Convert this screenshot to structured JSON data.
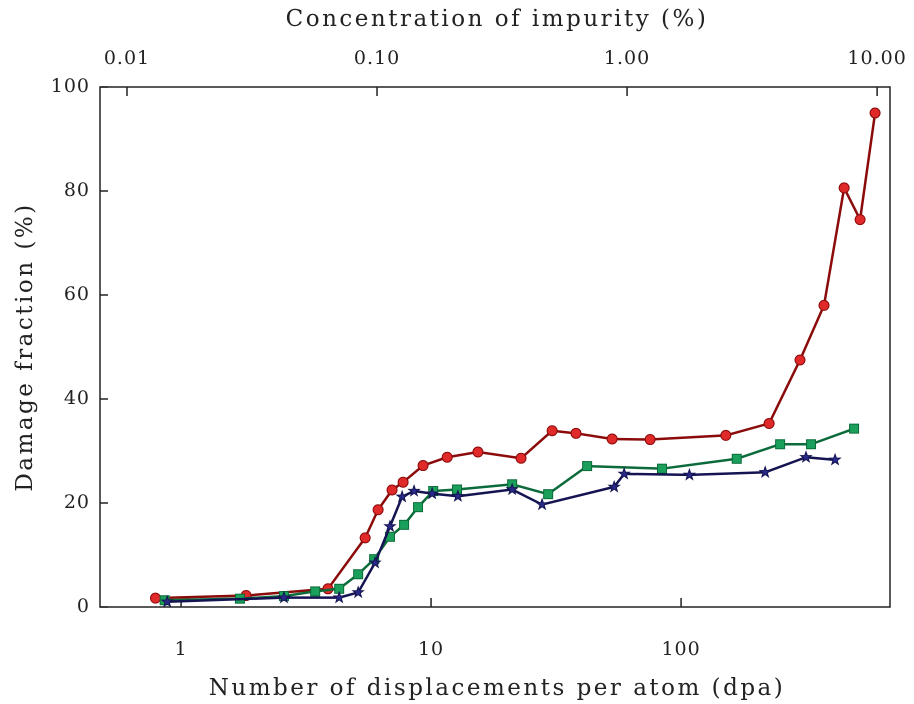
{
  "chart_data": {
    "type": "line",
    "xlabel": "Number of displacements per atom (dpa)",
    "ylabel": "Damage fraction (%)",
    "x2label": "Concentration of impurity (%)",
    "xscale": "log",
    "xlim": [
      0.474,
      685
    ],
    "xticks": [
      1,
      10,
      100
    ],
    "x2lim": [
      0.0078,
      11.26
    ],
    "x2ticks": [
      {
        "value": 0.01,
        "label": "0.01"
      },
      {
        "value": 0.1,
        "label": "0.10"
      },
      {
        "value": 1,
        "label": "1.00"
      },
      {
        "value": 10,
        "label": "10.00"
      }
    ],
    "ylim": [
      0,
      100
    ],
    "yticks": [
      0,
      20,
      40,
      60,
      80,
      100
    ],
    "series": [
      {
        "color": "#8b0a0a",
        "marker": "circle",
        "marker_color": "#e02a2a",
        "x": [
          0.79,
          1.82,
          3.87,
          5.45,
          6.14,
          6.98,
          7.73,
          9.29,
          11.6,
          15.4,
          22.9,
          30.5,
          38.0,
          53.0,
          75.2,
          151,
          225,
          299,
          373,
          449,
          520,
          597
        ],
        "values": [
          1.7,
          2.2,
          3.5,
          13.3,
          18.7,
          22.5,
          24,
          27.2,
          28.8,
          29.8,
          28.6,
          33.9,
          33.4,
          32.3,
          32.2,
          33,
          35.3,
          47.5,
          58,
          80.6,
          74.5,
          95
        ]
      },
      {
        "color": "#0b6b3a",
        "marker": "square",
        "marker_color": "#1aa05a",
        "x": [
          0.86,
          1.72,
          2.58,
          3.44,
          4.29,
          5.11,
          5.92,
          6.85,
          7.8,
          8.87,
          10.2,
          12.7,
          21.1,
          29.4,
          42.1,
          83.9,
          167,
          249,
          331,
          492
        ],
        "values": [
          1.3,
          1.6,
          2.1,
          3.0,
          3.5,
          6.3,
          9.2,
          13.5,
          15.8,
          19.2,
          22.3,
          22.6,
          23.6,
          21.7,
          27.1,
          26.6,
          28.5,
          31.3,
          31.3,
          34.3
        ]
      },
      {
        "color": "#141452",
        "marker": "star",
        "marker_color": "#2a2a8a",
        "x": [
          0.88,
          2.58,
          4.29,
          5.11,
          5.97,
          6.85,
          7.66,
          8.55,
          10.1,
          12.8,
          21.1,
          27.8,
          54.0,
          59.2,
          108,
          217,
          316,
          413
        ],
        "values": [
          1.0,
          1.8,
          1.8,
          2.8,
          8.5,
          15.5,
          21.2,
          22.3,
          21.8,
          21.3,
          22.6,
          19.7,
          23.1,
          25.6,
          25.4,
          25.9,
          28.8,
          28.3
        ]
      }
    ]
  }
}
